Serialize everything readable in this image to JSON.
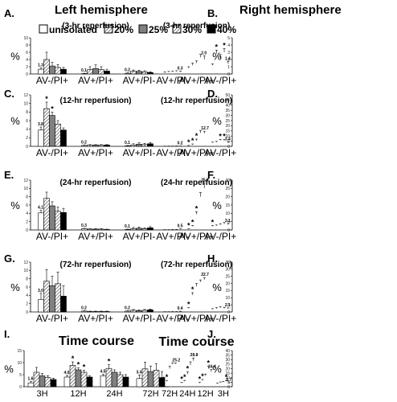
{
  "figure": {
    "headers": {
      "left": "Left hemisphere",
      "right": "Right hemisphere"
    },
    "legend": {
      "items": [
        {
          "label": "unisolated",
          "color": "#ffffff"
        },
        {
          "label": "20%",
          "color": "#ffffff",
          "pattern": "hatch"
        },
        {
          "label": "25%",
          "color": "#808080"
        },
        {
          "label": "30%",
          "color": "#ffffff",
          "pattern": "hatch"
        },
        {
          "label": "40%",
          "color": "#000000"
        }
      ]
    }
  },
  "chart_data": [
    {
      "id": "A",
      "letter": "A.",
      "subtitle": "(3-hr reperfusion)",
      "type": "bar",
      "ylabel": "%",
      "ylim": [
        0,
        10
      ],
      "yticks": [
        0,
        2,
        4,
        6,
        8,
        10
      ],
      "categories": [
        "AV-/PI+",
        "AV+/PI+",
        "AV+/PI-"
      ],
      "series": [
        {
          "name": "unisolated",
          "values": [
            1.3,
            0.1,
            0.2
          ]
        },
        {
          "name": "20%",
          "values": [
            4.0,
            1.2,
            0.8
          ]
        },
        {
          "name": "25%",
          "values": [
            2.2,
            1.5,
            0.7
          ]
        },
        {
          "name": "30%",
          "values": [
            1.8,
            1.2,
            0.6
          ]
        },
        {
          "name": "40%",
          "values": [
            1.3,
            0.8,
            0.4
          ]
        }
      ],
      "errors": [
        [
          0.4,
          0.1,
          0.1
        ],
        [
          2.0,
          0.8,
          0.3
        ],
        [
          1.0,
          1.0,
          0.3
        ],
        [
          0.8,
          0.8,
          0.3
        ],
        [
          0.5,
          0.5,
          0.2
        ]
      ],
      "value_labels": [
        "1.3",
        "0.1",
        "0.2"
      ],
      "stars": []
    },
    {
      "id": "B",
      "letter": "B.",
      "subtitle": "(3-hr reperfusion)",
      "type": "bar",
      "ylabel": "%",
      "ylim": [
        0,
        5
      ],
      "yticks": [
        0,
        1,
        2,
        3,
        4,
        5
      ],
      "categories": [
        "AV-/PI+",
        "AV+/PI+",
        "AV+/PI-"
      ],
      "series": [
        {
          "name": "unisolated",
          "values": [
            1.4,
            2.0,
            0.3
          ]
        },
        {
          "name": "20%",
          "values": [
            3.0,
            2.3,
            0.35
          ]
        },
        {
          "name": "25%",
          "values": [
            2.2,
            1.5,
            0.3
          ]
        },
        {
          "name": "30%",
          "values": [
            2.8,
            1.2,
            0.25
          ]
        },
        {
          "name": "40%",
          "values": [
            1.2,
            0.8,
            0.2
          ]
        }
      ],
      "errors": [
        [
          0.3,
          0.5,
          0.1
        ],
        [
          0.5,
          0.4,
          0.1
        ],
        [
          0.5,
          0.3,
          0.1
        ],
        [
          0.5,
          0.3,
          0.1
        ],
        [
          0.2,
          0.2,
          0.1
        ]
      ],
      "value_labels": [
        "1.4",
        "2.0",
        "0.3"
      ],
      "stars": [
        [
          0,
          1
        ],
        [
          0,
          3
        ]
      ]
    },
    {
      "id": "C",
      "letter": "C.",
      "subtitle": "(12-hr reperfusion)",
      "type": "bar",
      "ylabel": "%",
      "ylim": [
        0,
        12
      ],
      "yticks": [
        0,
        2,
        4,
        6,
        8,
        10,
        12
      ],
      "categories": [
        "AV-/PI+",
        "AV+/PI+",
        "AV+/PI-"
      ],
      "series": [
        {
          "name": "unisolated",
          "values": [
            3.8,
            0.2,
            0.1
          ]
        },
        {
          "name": "20%",
          "values": [
            8.8,
            0.3,
            0.3
          ]
        },
        {
          "name": "25%",
          "values": [
            7.2,
            0.3,
            0.5
          ]
        },
        {
          "name": "30%",
          "values": [
            5.2,
            0.3,
            0.4
          ]
        },
        {
          "name": "40%",
          "values": [
            3.8,
            0.3,
            0.6
          ]
        }
      ],
      "errors": [
        [
          0.7,
          0.1,
          0.1
        ],
        [
          1.5,
          0.1,
          0.3
        ],
        [
          0.8,
          0.1,
          0.3
        ],
        [
          0.8,
          0.1,
          0.3
        ],
        [
          0.5,
          0.1,
          0.3
        ]
      ],
      "value_labels": [
        "3.8",
        "0.2",
        "0.1"
      ],
      "stars": [
        [
          0,
          1
        ],
        [
          0,
          2
        ]
      ]
    },
    {
      "id": "D",
      "letter": "D.",
      "subtitle": "(12-hr reperfusion)",
      "type": "bar",
      "ylabel": "%",
      "ylim": [
        0,
        50
      ],
      "yticks": [
        0,
        5,
        10,
        15,
        20,
        25,
        30,
        35,
        40,
        45,
        50
      ],
      "categories": [
        "AV-/PI+",
        "AV+/PI+",
        "AV+/PI-"
      ],
      "series": [
        {
          "name": "unisolated",
          "values": [
            3.4,
            12.7,
            0.2
          ]
        },
        {
          "name": "20%",
          "values": [
            5.5,
            13.0,
            0.3
          ]
        },
        {
          "name": "25%",
          "values": [
            5.8,
            5.5,
            0.2
          ]
        },
        {
          "name": "30%",
          "values": [
            4.0,
            1.5,
            0.2
          ]
        },
        {
          "name": "40%",
          "values": [
            3.5,
            0.6,
            0.1
          ]
        }
      ],
      "errors": [
        [
          0.8,
          2.0,
          0.1
        ],
        [
          1.0,
          2.5,
          0.1
        ],
        [
          1.0,
          1.5,
          0.1
        ],
        [
          0.8,
          0.8,
          0.1
        ],
        [
          0.6,
          0.3,
          0.1
        ]
      ],
      "value_labels": [
        "3.4",
        "12.7",
        "0.2"
      ],
      "stars": [
        [
          0,
          1
        ],
        [
          0,
          2
        ],
        [
          1,
          2
        ],
        [
          1,
          3
        ],
        [
          1,
          4
        ]
      ]
    },
    {
      "id": "E",
      "letter": "E.",
      "subtitle": "(24-hr reperfusion)",
      "type": "bar",
      "ylabel": "%",
      "ylim": [
        0,
        12
      ],
      "yticks": [
        0,
        2,
        4,
        6,
        8,
        10,
        12
      ],
      "categories": [
        "AV-/PI+",
        "AV+/PI+",
        "AV+/PI-"
      ],
      "series": [
        {
          "name": "unisolated",
          "values": [
            4.1,
            0.3,
            0.1
          ]
        },
        {
          "name": "20%",
          "values": [
            7.6,
            0.2,
            0.3
          ]
        },
        {
          "name": "25%",
          "values": [
            5.8,
            0.2,
            0.4
          ]
        },
        {
          "name": "30%",
          "values": [
            4.5,
            0.2,
            0.3
          ]
        },
        {
          "name": "40%",
          "values": [
            4.2,
            0.1,
            0.5
          ]
        }
      ],
      "errors": [
        [
          0.6,
          0.1,
          0.1
        ],
        [
          1.5,
          0.1,
          0.3
        ],
        [
          1.0,
          0.1,
          0.3
        ],
        [
          1.0,
          0.1,
          0.2
        ],
        [
          1.0,
          0.1,
          0.3
        ]
      ],
      "value_labels": [
        "4.1",
        "0.3",
        "0.1"
      ],
      "stars": []
    },
    {
      "id": "F",
      "letter": "F.",
      "subtitle": "(24-hr reperfusion)",
      "type": "bar",
      "ylabel": "%",
      "ylim": [
        0,
        30
      ],
      "yticks": [
        0,
        5,
        10,
        15,
        20,
        25,
        30
      ],
      "categories": [
        "AV-/PI+",
        "AV+/PI+",
        "AV+/PI-"
      ],
      "series": [
        {
          "name": "unisolated",
          "values": [
            3.1,
            25.2,
            0.5
          ]
        },
        {
          "name": "20%",
          "values": [
            3.5,
            20.0,
            0.2
          ]
        },
        {
          "name": "25%",
          "values": [
            3.0,
            9.5,
            0.2
          ]
        },
        {
          "name": "30%",
          "values": [
            2.5,
            2.2,
            0.1
          ]
        },
        {
          "name": "40%",
          "values": [
            2.2,
            0.5,
            0.1
          ]
        }
      ],
      "errors": [
        [
          0.8,
          3.0,
          0.2
        ],
        [
          1.0,
          2.5,
          0.1
        ],
        [
          0.8,
          1.5,
          0.1
        ],
        [
          0.5,
          0.5,
          0.1
        ],
        [
          0.5,
          0.2,
          0.1
        ]
      ],
      "value_labels": [
        "3.1",
        "25.2",
        "0.5"
      ],
      "stars": [
        [
          0,
          4
        ],
        [
          1,
          2
        ],
        [
          1,
          3
        ],
        [
          1,
          4
        ]
      ]
    },
    {
      "id": "G",
      "letter": "G.",
      "subtitle": "(72-hr reperfusion)",
      "type": "bar",
      "ylabel": "%",
      "ylim": [
        0,
        12
      ],
      "yticks": [
        0,
        2,
        4,
        6,
        8,
        10,
        12
      ],
      "categories": [
        "AV-/PI+",
        "AV+/PI+",
        "AV+/PI-"
      ],
      "series": [
        {
          "name": "unisolated",
          "values": [
            3.0,
            0.2,
            0.2
          ]
        },
        {
          "name": "20%",
          "values": [
            7.4,
            0.1,
            0.4
          ]
        },
        {
          "name": "25%",
          "values": [
            6.3,
            0.1,
            0.3
          ]
        },
        {
          "name": "30%",
          "values": [
            6.8,
            0.1,
            0.4
          ]
        },
        {
          "name": "40%",
          "values": [
            3.8,
            0.1,
            0.5
          ]
        }
      ],
      "errors": [
        [
          1.5,
          0.1,
          0.1
        ],
        [
          2.8,
          0.1,
          0.2
        ],
        [
          2.3,
          0.1,
          0.2
        ],
        [
          2.8,
          0.1,
          0.2
        ],
        [
          2.5,
          0.1,
          0.2
        ]
      ],
      "value_labels": [
        "3.0",
        "0.2",
        "0.2"
      ],
      "stars": []
    },
    {
      "id": "H",
      "letter": "H.",
      "subtitle": "(72-hr reperfusion)",
      "type": "bar",
      "ylabel": "%",
      "ylim": [
        0,
        35
      ],
      "yticks": [
        0,
        5,
        10,
        15,
        20,
        25,
        30,
        35
      ],
      "categories": [
        "AV-/PI+",
        "AV+/PI+",
        "AV+/PI-"
      ],
      "series": [
        {
          "name": "unisolated",
          "values": [
            2.1,
            22.7,
            0.4
          ]
        },
        {
          "name": "20%",
          "values": [
            2.5,
            21.0,
            0.2
          ]
        },
        {
          "name": "25%",
          "values": [
            2.8,
            18.0,
            0.2
          ]
        },
        {
          "name": "30%",
          "values": [
            2.3,
            12.0,
            0.1
          ]
        },
        {
          "name": "40%",
          "values": [
            1.8,
            2.5,
            0.1
          ]
        }
      ],
      "errors": [
        [
          0.8,
          1.5,
          0.1
        ],
        [
          0.8,
          1.5,
          0.1
        ],
        [
          0.8,
          2.0,
          0.1
        ],
        [
          0.8,
          1.5,
          0.1
        ],
        [
          0.5,
          0.5,
          0.1
        ]
      ],
      "value_labels": [
        "2.1",
        "22.7",
        "0.4"
      ],
      "stars": [
        [
          1,
          3
        ],
        [
          1,
          4
        ]
      ]
    },
    {
      "id": "I",
      "letter": "I.",
      "title": "Time course",
      "type": "bar",
      "ylabel": "%",
      "ylim": [
        0,
        15
      ],
      "yticks": [
        0,
        5,
        10,
        15
      ],
      "categories": [
        "3H",
        "12H",
        "24H",
        "72H"
      ],
      "series": [
        {
          "name": "unisolated",
          "values": [
            1.6,
            4.0,
            4.5,
            3.4
          ]
        },
        {
          "name": "20%",
          "values": [
            6.0,
            8.8,
            7.6,
            7.4
          ]
        },
        {
          "name": "25%",
          "values": [
            4.5,
            7.0,
            6.0,
            6.3
          ]
        },
        {
          "name": "30%",
          "values": [
            3.8,
            6.0,
            5.0,
            6.8
          ]
        },
        {
          "name": "40%",
          "values": [
            3.0,
            4.0,
            4.0,
            3.8
          ]
        }
      ],
      "errors": [
        [
          0.5,
          0.7,
          0.6,
          1.5
        ],
        [
          2.0,
          1.5,
          1.5,
          2.8
        ],
        [
          1.0,
          0.8,
          1.0,
          2.3
        ],
        [
          0.8,
          0.8,
          1.0,
          2.8
        ],
        [
          0.5,
          0.5,
          1.0,
          2.5
        ]
      ],
      "value_labels": [
        "1.6",
        "4.0",
        "4.5",
        "3.4"
      ],
      "stars": [
        [
          1,
          1
        ],
        [
          1,
          2
        ],
        [
          1,
          3
        ],
        [
          2,
          1
        ]
      ]
    },
    {
      "id": "J",
      "letter": "J.",
      "title": "Time course",
      "type": "bar",
      "ylabel": "%",
      "ylim": [
        0,
        40
      ],
      "yticks": [
        0,
        5,
        10,
        15,
        20,
        25,
        30,
        35,
        40
      ],
      "categories": [
        "3H",
        "12H",
        "24H",
        "72H"
      ],
      "series": [
        {
          "name": "unisolated",
          "values": [
            3.7,
            16.4,
            28.8,
            25.2
          ]
        },
        {
          "name": "20%",
          "values": [
            6.0,
            20.0,
            24.0,
            25.0
          ]
        },
        {
          "name": "25%",
          "values": [
            5.0,
            12.0,
            14.0,
            20.0
          ]
        },
        {
          "name": "30%",
          "values": [
            4.5,
            7.0,
            6.0,
            6.0
          ]
        },
        {
          "name": "40%",
          "values": [
            3.5,
            4.0,
            4.0,
            3.5
          ]
        }
      ],
      "errors": [
        [
          0.8,
          2.5,
          3.0,
          1.0
        ],
        [
          1.0,
          2.5,
          3.5,
          1.5
        ],
        [
          1.0,
          2.0,
          2.5,
          2.5
        ],
        [
          0.8,
          1.0,
          1.0,
          1.0
        ],
        [
          0.5,
          0.8,
          0.8,
          0.8
        ]
      ],
      "value_labels": [
        "3.7",
        "16.4",
        "28.8",
        "25.2"
      ],
      "stars": [
        [
          0,
          1
        ],
        [
          1,
          1
        ],
        [
          1,
          3
        ],
        [
          1,
          4
        ],
        [
          2,
          2
        ],
        [
          2,
          3
        ],
        [
          2,
          4
        ],
        [
          3,
          3
        ],
        [
          3,
          4
        ]
      ]
    }
  ]
}
